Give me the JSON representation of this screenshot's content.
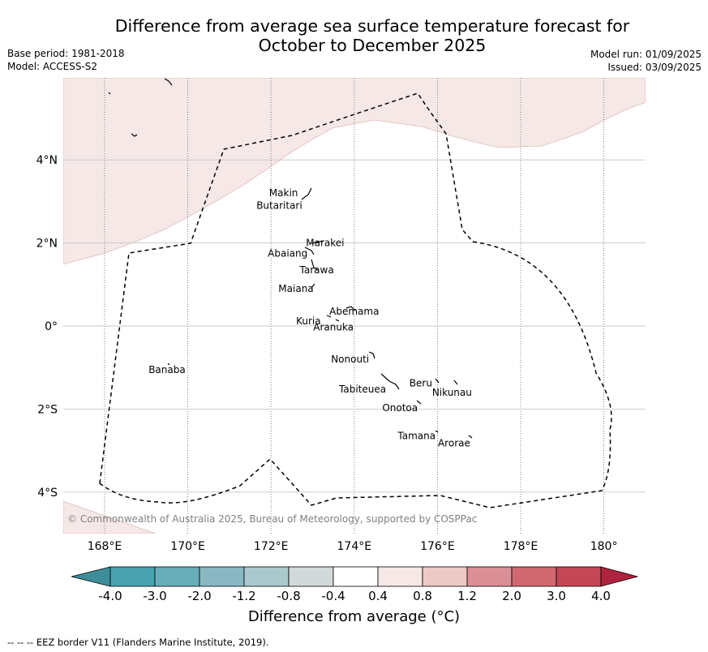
{
  "title": "Difference from average sea surface temperature forecast for\nOctober to December 2025",
  "meta_left": {
    "base_period": "Base period: 1981-2018",
    "model": "Model: ACCESS-S2"
  },
  "meta_right": {
    "model_run": "Model run: 01/09/2025",
    "issued": "Issued: 03/09/2025"
  },
  "map": {
    "lon_ticks": [
      {
        "lon": 168,
        "label": "168°E"
      },
      {
        "lon": 170,
        "label": "170°E"
      },
      {
        "lon": 172,
        "label": "172°E"
      },
      {
        "lon": 174,
        "label": "174°E"
      },
      {
        "lon": 176,
        "label": "176°E"
      },
      {
        "lon": 178,
        "label": "178°E"
      },
      {
        "lon": 180,
        "label": "180°"
      }
    ],
    "lat_ticks": [
      {
        "lat": 4,
        "label": "4°N"
      },
      {
        "lat": 2,
        "label": "2°N"
      },
      {
        "lat": 0,
        "label": "0°"
      },
      {
        "lat": -2,
        "label": "2°S"
      },
      {
        "lat": -4,
        "label": "4°S"
      }
    ],
    "places": [
      {
        "name": "Makin",
        "lon": 172.3,
        "lat": 3.2
      },
      {
        "name": "Butaritari",
        "lon": 172.2,
        "lat": 2.9
      },
      {
        "name": "Marakei",
        "lon": 173.3,
        "lat": 2.0
      },
      {
        "name": "Abaiang",
        "lon": 172.4,
        "lat": 1.75
      },
      {
        "name": "Tarawa",
        "lon": 173.1,
        "lat": 1.35
      },
      {
        "name": "Maiana",
        "lon": 172.6,
        "lat": 0.9
      },
      {
        "name": "Abemama",
        "lon": 174.0,
        "lat": 0.35
      },
      {
        "name": "Kuria",
        "lon": 172.9,
        "lat": 0.12
      },
      {
        "name": "Aranuka",
        "lon": 173.5,
        "lat": -0.03
      },
      {
        "name": "Nonouti",
        "lon": 173.9,
        "lat": -0.8
      },
      {
        "name": "Banaba",
        "lon": 169.5,
        "lat": -1.05
      },
      {
        "name": "Beru",
        "lon": 175.6,
        "lat": -1.38
      },
      {
        "name": "Nikunau",
        "lon": 176.35,
        "lat": -1.6
      },
      {
        "name": "Tabiteuea",
        "lon": 174.2,
        "lat": -1.52
      },
      {
        "name": "Onotoa",
        "lon": 175.1,
        "lat": -1.97
      },
      {
        "name": "Tamana",
        "lon": 175.5,
        "lat": -2.65
      },
      {
        "name": "Arorae",
        "lon": 176.4,
        "lat": -2.82
      }
    ],
    "copyright": "© Commonwealth of Australia 2025, Bureau of Meteorology, supported by COSPPac",
    "anomaly_fill_color": "#f5e8e6"
  },
  "colorbar": {
    "label": "Difference from average (°C)",
    "tick_labels": [
      "-4.0",
      "-3.0",
      "-2.0",
      "-1.2",
      "-0.8",
      "-0.4",
      "0.4",
      "0.8",
      "1.2",
      "2.0",
      "3.0",
      "4.0"
    ],
    "colors": [
      "#3d8d9b",
      "#4aa1b0",
      "#69adb9",
      "#89b8c2",
      "#abc9cc",
      "#d3d9d8",
      "#ffffff",
      "#f5e8e6",
      "#ebc9c5",
      "#da8f96",
      "#d06872",
      "#c44756",
      "#b0223d"
    ]
  },
  "footer": "--  --  -- EEZ border V11 (Flanders Marine Institute, 2019)."
}
